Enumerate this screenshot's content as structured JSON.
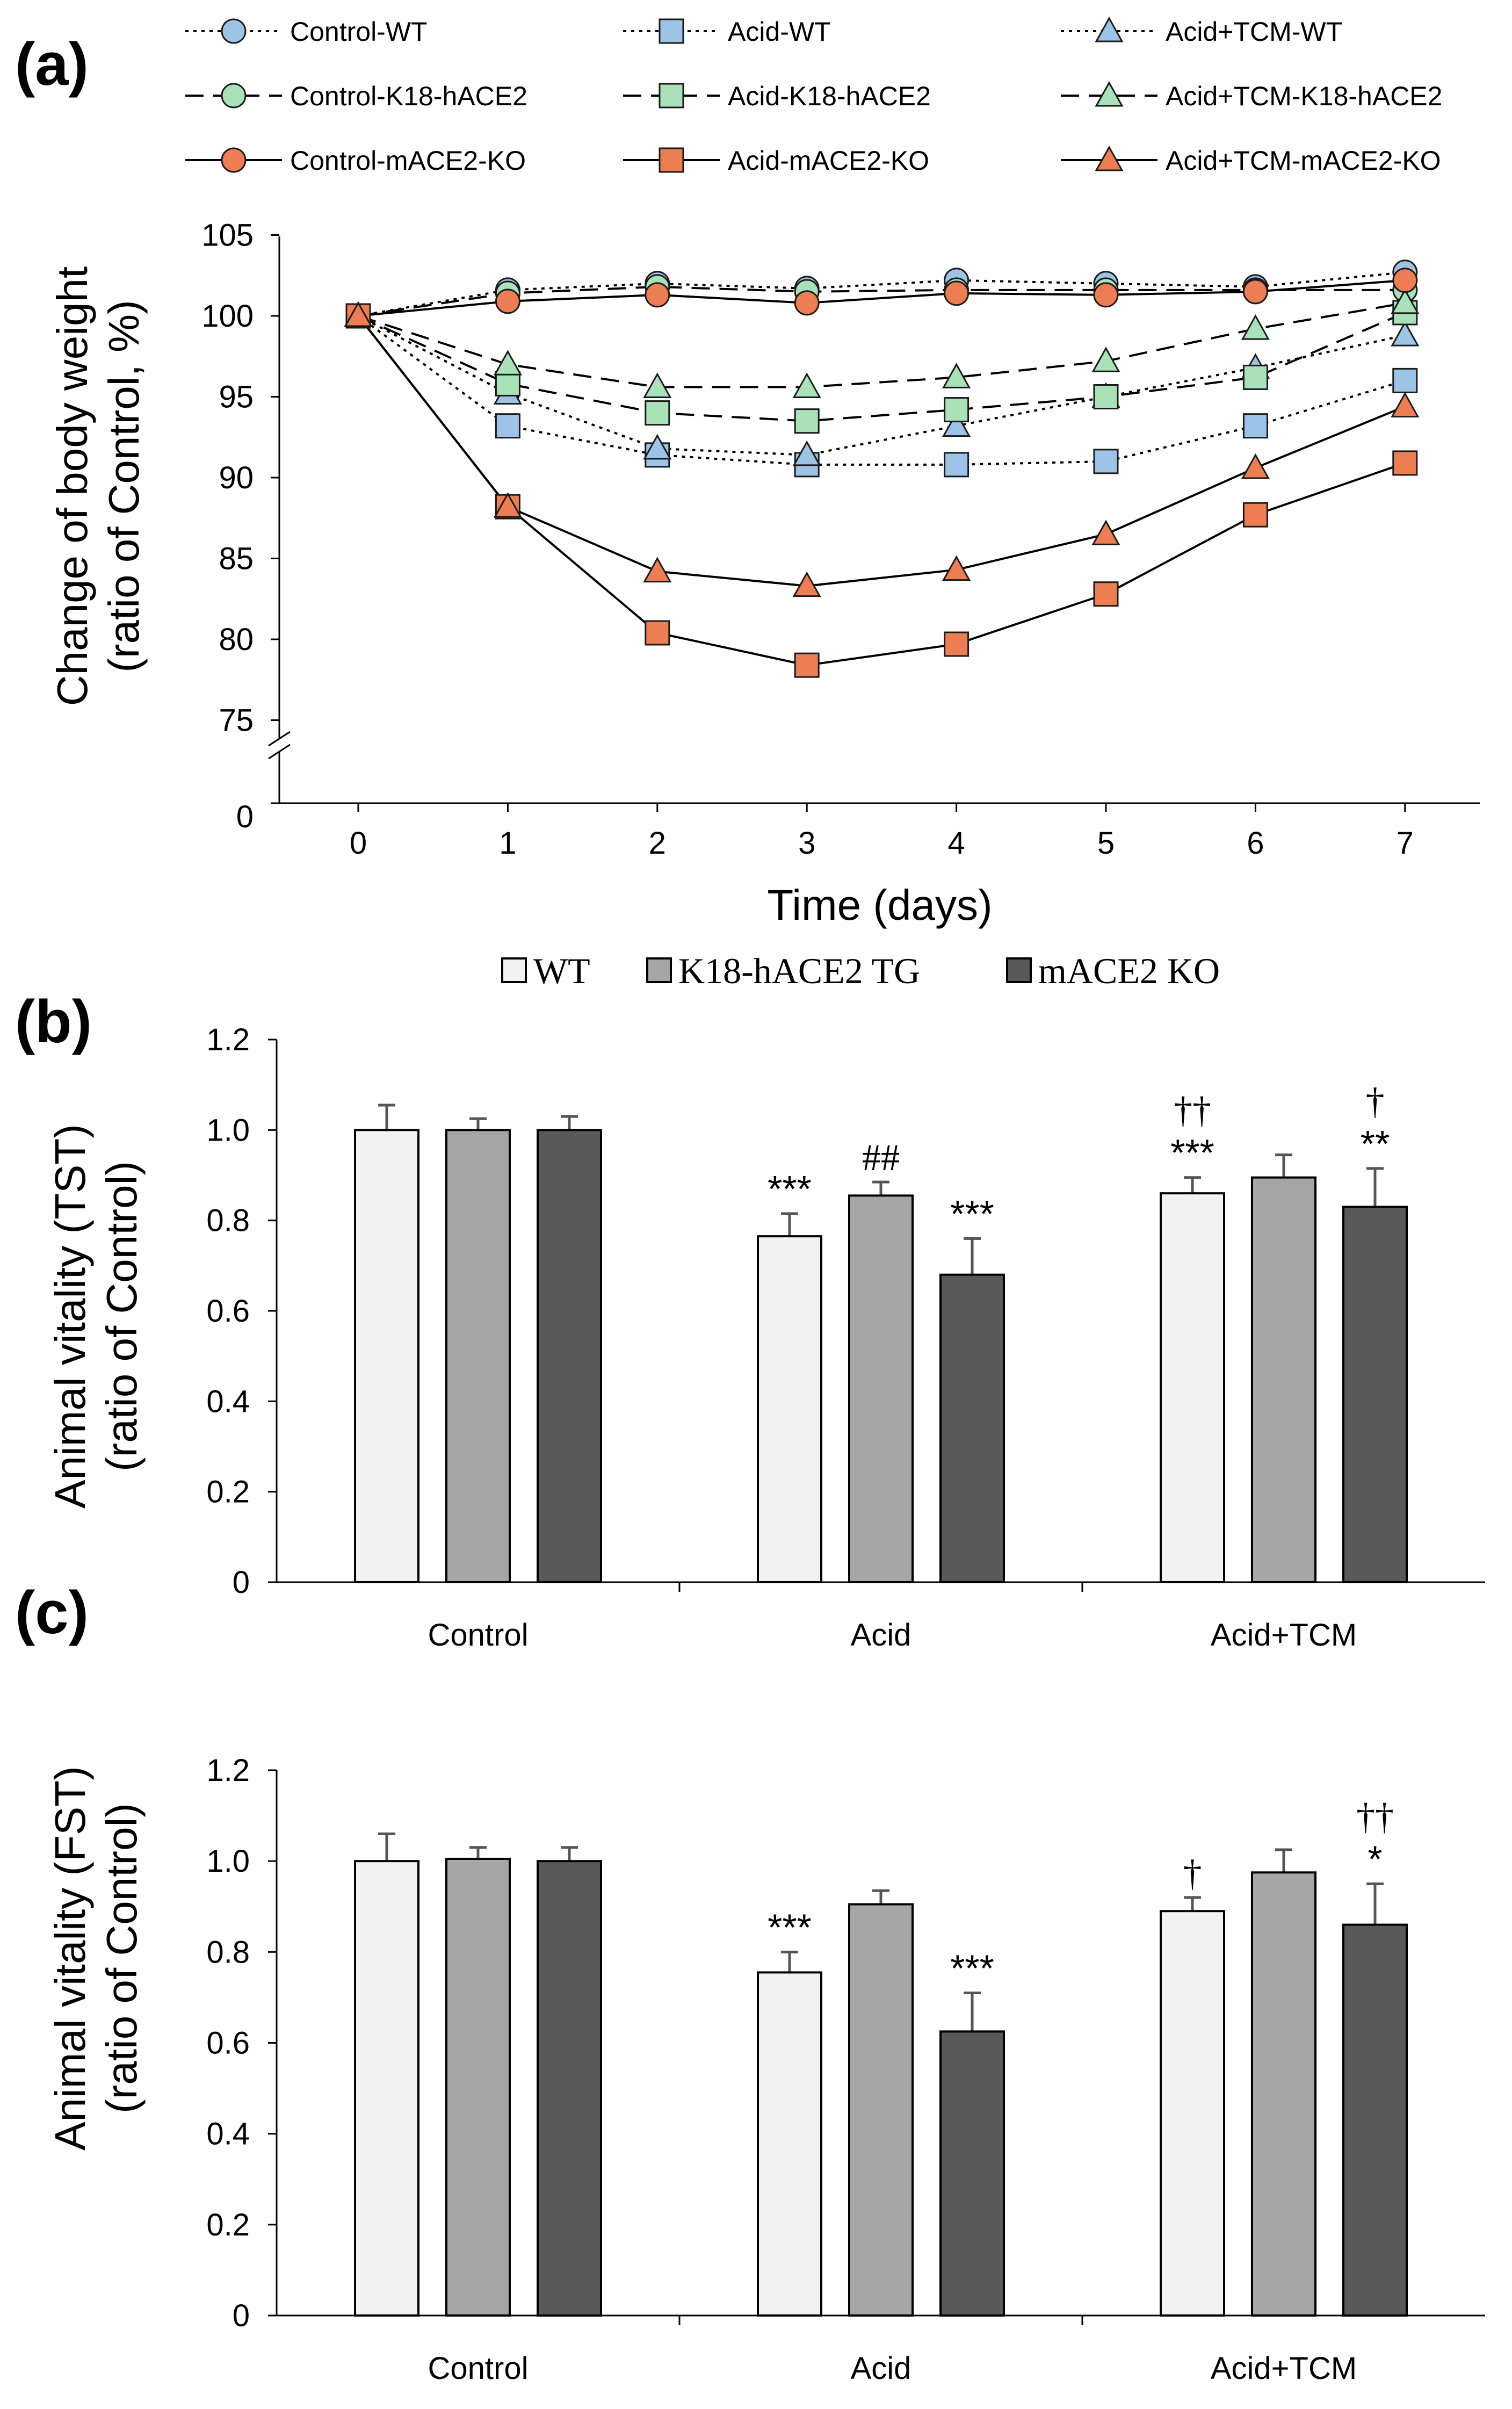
{
  "chart_data": [
    {
      "panel": "(a)",
      "type": "line",
      "xlabel": "Time (days)",
      "ylabel_line1": "Change of body weight",
      "ylabel_line2": "(ratio of Control, %)",
      "x": [
        0,
        1,
        2,
        3,
        4,
        5,
        6,
        7
      ],
      "x_tick_labels": [
        "0",
        "1",
        "2",
        "3",
        "4",
        "5",
        "6",
        "7"
      ],
      "y_tick_labels": [
        "105",
        "100",
        "95",
        "90",
        "85",
        "80",
        "75",
        "0"
      ],
      "ylim": [
        73,
        105
      ],
      "axis_break": true,
      "series": [
        {
          "name": "Control-WT",
          "marker": "circle",
          "line": "dotted",
          "color": "#9DC3E6",
          "values": [
            100,
            101.6,
            102.0,
            101.7,
            102.2,
            102.0,
            101.8,
            102.7
          ]
        },
        {
          "name": "Acid-WT",
          "marker": "square",
          "line": "dotted",
          "color": "#9DC3E6",
          "values": [
            100,
            93.2,
            91.4,
            90.8,
            90.8,
            91.0,
            93.2,
            96.0
          ]
        },
        {
          "name": "Acid+TCM-WT",
          "marker": "triangle",
          "line": "dotted",
          "color": "#9DC3E6",
          "values": [
            100,
            95.2,
            91.8,
            91.4,
            93.2,
            95.0,
            96.8,
            98.8
          ]
        },
        {
          "name": "Control-K18-hACE2",
          "marker": "circle",
          "line": "dashed",
          "color": "#A9E2B9",
          "values": [
            100,
            101.4,
            101.8,
            101.5,
            101.6,
            101.6,
            101.6,
            101.6
          ]
        },
        {
          "name": "Acid-K18-hACE2",
          "marker": "square",
          "line": "dashed",
          "color": "#A9E2B9",
          "values": [
            100,
            95.8,
            94.0,
            93.5,
            94.2,
            95.0,
            96.2,
            100.2
          ]
        },
        {
          "name": "Acid+TCM-K18-hACE2",
          "marker": "triangle",
          "line": "dashed",
          "color": "#A9E2B9",
          "values": [
            100,
            97.0,
            95.6,
            95.6,
            96.2,
            97.2,
            99.2,
            100.8
          ]
        },
        {
          "name": "Control-mACE2-KO",
          "marker": "circle",
          "line": "solid",
          "color": "#ED7D52",
          "values": [
            100,
            100.9,
            101.3,
            100.8,
            101.4,
            101.3,
            101.5,
            102.2
          ]
        },
        {
          "name": "Acid-mACE2-KO",
          "marker": "square",
          "line": "solid",
          "color": "#ED7D52",
          "values": [
            100,
            88.2,
            80.4,
            78.4,
            79.7,
            82.8,
            87.7,
            90.9
          ]
        },
        {
          "name": "Acid+TCM-mACE2-KO",
          "marker": "triangle",
          "line": "solid",
          "color": "#ED7D52",
          "values": [
            100,
            88.2,
            84.2,
            83.3,
            84.3,
            86.5,
            90.6,
            94.4
          ]
        }
      ]
    },
    {
      "panel": "(b)",
      "type": "bar",
      "ylabel_line1": "Animal vitality (TST)",
      "ylabel_line2": "(ratio of Control)",
      "ylim": [
        0,
        1.2
      ],
      "y_tick_labels": [
        "1.2",
        "1.0",
        "0.8",
        "0.6",
        "0.4",
        "0.2",
        "0"
      ],
      "categories": [
        "Control",
        "Acid",
        "Acid+TCM"
      ],
      "legend": [
        "WT",
        "K18-hACE2 TG",
        "mACE2 KO"
      ],
      "series": [
        {
          "name": "WT",
          "color": "#F2F2F2",
          "values": [
            1.0,
            0.765,
            0.86
          ],
          "errors": [
            0.055,
            0.05,
            0.035
          ]
        },
        {
          "name": "K18-hACE2 TG",
          "color": "#A6A6A6",
          "values": [
            1.0,
            0.855,
            0.895
          ],
          "errors": [
            0.025,
            0.03,
            0.05
          ]
        },
        {
          "name": "mACE2 KO",
          "color": "#595959",
          "values": [
            1.0,
            0.68,
            0.83
          ],
          "errors": [
            0.03,
            0.08,
            0.085
          ]
        }
      ],
      "annotations": [
        {
          "category": "Acid",
          "series": "WT",
          "lines": [
            "***"
          ]
        },
        {
          "category": "Acid",
          "series": "K18-hACE2 TG",
          "lines": [
            "##"
          ]
        },
        {
          "category": "Acid",
          "series": "mACE2 KO",
          "lines": [
            "***"
          ]
        },
        {
          "category": "Acid+TCM",
          "series": "WT",
          "lines": [
            "††",
            "***"
          ]
        },
        {
          "category": "Acid+TCM",
          "series": "mACE2 KO",
          "lines": [
            "†",
            "**"
          ]
        }
      ]
    },
    {
      "panel": "(c)",
      "type": "bar",
      "ylabel_line1": "Animal vitality (FST)",
      "ylabel_line2": "(ratio of Control)",
      "ylim": [
        0,
        1.2
      ],
      "y_tick_labels": [
        "1.2",
        "1.0",
        "0.8",
        "0.6",
        "0.4",
        "0.2",
        "0"
      ],
      "categories": [
        "Control",
        "Acid",
        "Acid+TCM"
      ],
      "legend": [
        "WT",
        "K18-hACE2 TG",
        "mACE2 KO"
      ],
      "series": [
        {
          "name": "WT",
          "color": "#F2F2F2",
          "values": [
            1.0,
            0.755,
            0.89
          ],
          "errors": [
            0.06,
            0.045,
            0.03
          ]
        },
        {
          "name": "K18-hACE2 TG",
          "color": "#A6A6A6",
          "values": [
            1.005,
            0.905,
            0.975
          ],
          "errors": [
            0.025,
            0.03,
            0.05
          ]
        },
        {
          "name": "mACE2 KO",
          "color": "#595959",
          "values": [
            1.0,
            0.625,
            0.86
          ],
          "errors": [
            0.03,
            0.085,
            0.09
          ]
        }
      ],
      "annotations": [
        {
          "category": "Acid",
          "series": "WT",
          "lines": [
            "***"
          ]
        },
        {
          "category": "Acid",
          "series": "mACE2 KO",
          "lines": [
            "***"
          ]
        },
        {
          "category": "Acid+TCM",
          "series": "WT",
          "lines": [
            "†"
          ]
        },
        {
          "category": "Acid+TCM",
          "series": "mACE2 KO",
          "lines": [
            "††",
            "*"
          ]
        }
      ]
    }
  ]
}
